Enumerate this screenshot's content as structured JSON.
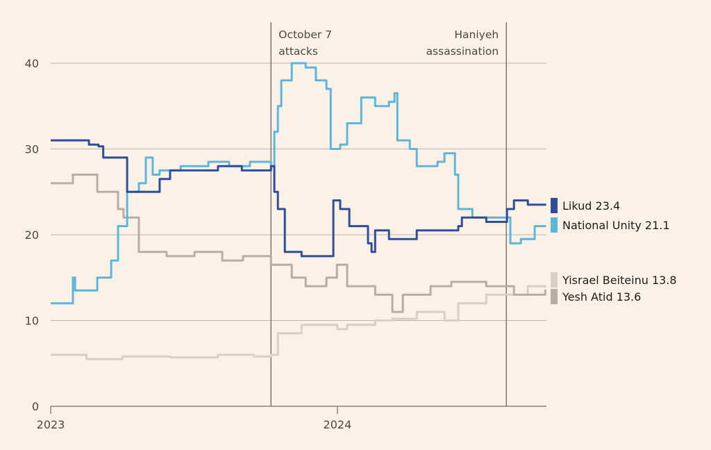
{
  "chart_data": {
    "type": "line",
    "title": "",
    "xlabel": "",
    "ylabel": "",
    "x_unit": "months since Jan 2023",
    "xlim": [
      0,
      20.75
    ],
    "ylim": [
      0,
      40
    ],
    "yticks": [
      0,
      10,
      20,
      30,
      40
    ],
    "xticks": [
      {
        "x": 0,
        "label": "2023"
      },
      {
        "x": 12,
        "label": "2024"
      }
    ],
    "grid": true,
    "legend": "right",
    "annotations": [
      {
        "x": 9.22,
        "lines": [
          "October 7",
          "attacks"
        ],
        "align": "left"
      },
      {
        "x": 19.07,
        "lines": [
          "Haniyeh",
          "assassination"
        ],
        "align": "right"
      }
    ],
    "series": [
      {
        "name": "Yisrael Beiteinu",
        "label": "Yisrael Beiteinu 13.8",
        "color": "#d9cfc8",
        "points": [
          [
            0,
            6
          ],
          [
            1.5,
            5.5
          ],
          [
            3,
            5.8
          ],
          [
            5,
            5.7
          ],
          [
            7,
            6
          ],
          [
            8.5,
            5.8
          ],
          [
            9.22,
            6
          ],
          [
            9.51,
            8.5
          ],
          [
            10.5,
            9.5
          ],
          [
            12,
            9
          ],
          [
            12.41,
            9.5
          ],
          [
            13.58,
            10
          ],
          [
            14.3,
            10.2
          ],
          [
            15.32,
            11
          ],
          [
            16.48,
            10
          ],
          [
            17.06,
            12
          ],
          [
            18.23,
            13
          ],
          [
            19.97,
            14
          ],
          [
            20.7,
            13.8
          ]
        ]
      },
      {
        "name": "Yesh Atid",
        "label": "Yesh Atid 13.6",
        "color": "#b7ada7",
        "points": [
          [
            0,
            26
          ],
          [
            0.78,
            26
          ],
          [
            0.93,
            27
          ],
          [
            1.95,
            25
          ],
          [
            2.82,
            23
          ],
          [
            3.05,
            22
          ],
          [
            3.69,
            18
          ],
          [
            4.85,
            17.5
          ],
          [
            6.02,
            18
          ],
          [
            7.18,
            17
          ],
          [
            8.05,
            17.5
          ],
          [
            9.22,
            16.5
          ],
          [
            10.09,
            15
          ],
          [
            10.67,
            14
          ],
          [
            11.54,
            15
          ],
          [
            11.98,
            16.5
          ],
          [
            12.41,
            14
          ],
          [
            13.58,
            13
          ],
          [
            14.3,
            11
          ],
          [
            14.74,
            13
          ],
          [
            15.9,
            14
          ],
          [
            16.77,
            14.5
          ],
          [
            18.23,
            14
          ],
          [
            19.39,
            13
          ],
          [
            20.7,
            13.6
          ]
        ]
      },
      {
        "name": "National Unity",
        "label": "National Unity 21.1",
        "color": "#5cb6dc",
        "points": [
          [
            0,
            12
          ],
          [
            0.78,
            12
          ],
          [
            0.93,
            15
          ],
          [
            1.02,
            13.5
          ],
          [
            1.8,
            13.5
          ],
          [
            1.95,
            15
          ],
          [
            2.38,
            15
          ],
          [
            2.53,
            17
          ],
          [
            2.82,
            21
          ],
          [
            3.05,
            21
          ],
          [
            3.2,
            25
          ],
          [
            3.69,
            26
          ],
          [
            3.98,
            29
          ],
          [
            4.27,
            27
          ],
          [
            4.56,
            27.5
          ],
          [
            5.44,
            28
          ],
          [
            6.6,
            28.5
          ],
          [
            7.47,
            28
          ],
          [
            8.34,
            28.5
          ],
          [
            9.22,
            28
          ],
          [
            9.36,
            32
          ],
          [
            9.51,
            35
          ],
          [
            9.65,
            38
          ],
          [
            10.09,
            40
          ],
          [
            10.67,
            39.5
          ],
          [
            11.1,
            38
          ],
          [
            11.54,
            37
          ],
          [
            11.72,
            30
          ],
          [
            12.12,
            30.5
          ],
          [
            12.41,
            33
          ],
          [
            13.0,
            36
          ],
          [
            13.58,
            35
          ],
          [
            14.16,
            35.5
          ],
          [
            14.39,
            36.5
          ],
          [
            14.51,
            31
          ],
          [
            15.03,
            30
          ],
          [
            15.32,
            28
          ],
          [
            16.19,
            28.5
          ],
          [
            16.48,
            29.5
          ],
          [
            16.92,
            27
          ],
          [
            17.06,
            23
          ],
          [
            17.65,
            22
          ],
          [
            18.81,
            22
          ],
          [
            19.24,
            19
          ],
          [
            19.68,
            19.5
          ],
          [
            20.26,
            21
          ],
          [
            20.7,
            21.1
          ]
        ]
      },
      {
        "name": "Likud",
        "label": "Likud 23.4",
        "color": "#2e4d9b",
        "points": [
          [
            0,
            31
          ],
          [
            1.5,
            31
          ],
          [
            1.6,
            30.5
          ],
          [
            2.0,
            30.3
          ],
          [
            2.2,
            29
          ],
          [
            3.0,
            29
          ],
          [
            3.2,
            25
          ],
          [
            4.56,
            26.5
          ],
          [
            5.0,
            27.5
          ],
          [
            6.0,
            27.5
          ],
          [
            7.0,
            28
          ],
          [
            8.0,
            27.5
          ],
          [
            8.92,
            27.5
          ],
          [
            9.22,
            28
          ],
          [
            9.36,
            25
          ],
          [
            9.51,
            23
          ],
          [
            9.8,
            18
          ],
          [
            10.5,
            17.5
          ],
          [
            11.54,
            17.5
          ],
          [
            11.83,
            24
          ],
          [
            12.12,
            23
          ],
          [
            12.5,
            21
          ],
          [
            13.28,
            19
          ],
          [
            13.43,
            18
          ],
          [
            13.58,
            20.5
          ],
          [
            14.16,
            19.5
          ],
          [
            15.03,
            19.5
          ],
          [
            15.32,
            20.5
          ],
          [
            16.48,
            20.5
          ],
          [
            17.06,
            21
          ],
          [
            17.21,
            22
          ],
          [
            18.23,
            21.5
          ],
          [
            18.81,
            21.5
          ],
          [
            19.1,
            23
          ],
          [
            19.39,
            24
          ],
          [
            19.97,
            23.5
          ],
          [
            20.7,
            23.4
          ]
        ]
      }
    ]
  }
}
